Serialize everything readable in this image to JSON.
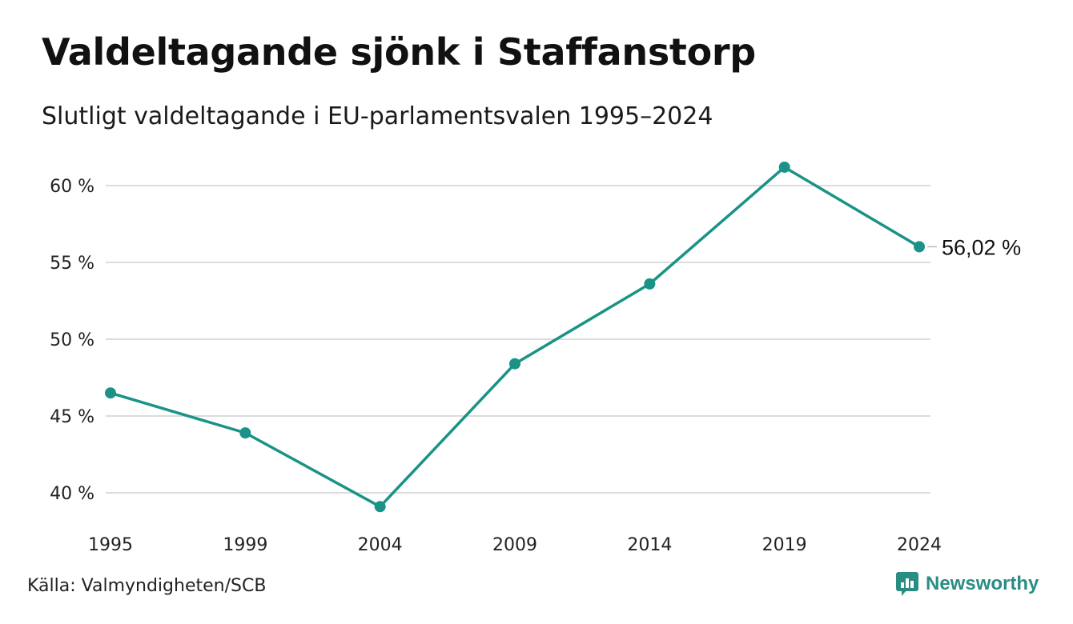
{
  "title": "Valdeltagande sjönk i Staffanstorp",
  "subtitle": "Slutligt valdeltagande i EU-parlamentsvalen 1995–2024",
  "source": "Källa: Valmyndigheten/SCB",
  "brand": {
    "name": "Newsworthy",
    "icon": "newsworthy-logo-icon",
    "color": "#2a8d84"
  },
  "colors": {
    "line": "#1a9386",
    "grid": "#dcdcdc"
  },
  "chart_data": {
    "type": "line",
    "title": "Valdeltagande sjönk i Staffanstorp",
    "subtitle": "Slutligt valdeltagande i EU-parlamentsvalen 1995–2024",
    "xlabel": "",
    "ylabel": "",
    "x": [
      "1995",
      "1999",
      "2004",
      "2009",
      "2014",
      "2019",
      "2024"
    ],
    "series": [
      {
        "values": [
          46.5,
          43.9,
          39.1,
          48.4,
          53.6,
          61.2,
          56.02
        ]
      }
    ],
    "ylim": [
      38,
      62
    ],
    "yticks": [
      40,
      45,
      50,
      55,
      60
    ],
    "ytick_labels": [
      "40 %",
      "45 %",
      "50 %",
      "55 %",
      "60 %"
    ],
    "end_label": "56,02 %",
    "grid": true,
    "legend": "none"
  }
}
